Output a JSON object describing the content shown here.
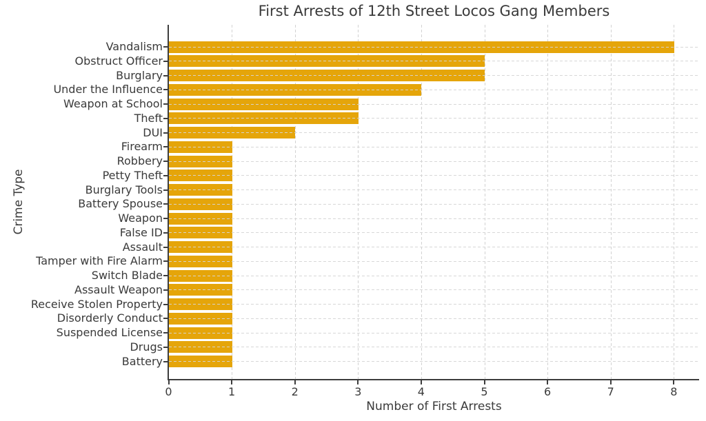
{
  "chart_data": {
    "type": "bar",
    "orientation": "horizontal",
    "title": "First Arrests of 12th Street Locos Gang Members",
    "xlabel": "Number of First Arrests",
    "ylabel": "Crime Type",
    "categories": [
      "Vandalism",
      "Obstruct Officer",
      "Burglary",
      "Under the Influence",
      "Weapon at School",
      "Theft",
      "DUI",
      "Firearm",
      "Robbery",
      "Petty Theft",
      "Burglary Tools",
      "Battery Spouse",
      "Weapon",
      "False ID",
      "Assault",
      "Tamper with Fire Alarm",
      "Switch Blade",
      "Assault Weapon",
      "Receive Stolen Property",
      "Disorderly Conduct",
      "Suspended License",
      "Drugs",
      "Battery"
    ],
    "values": [
      8,
      5,
      5,
      4,
      3,
      3,
      2,
      1,
      1,
      1,
      1,
      1,
      1,
      1,
      1,
      1,
      1,
      1,
      1,
      1,
      1,
      1,
      1
    ],
    "xticks": [
      0,
      1,
      2,
      3,
      4,
      5,
      6,
      7,
      8
    ],
    "xlim": [
      0,
      8.4
    ],
    "grid": true,
    "grid_style": "dashed",
    "legend": "none",
    "bar_color": "#E5A50A",
    "grid_color": "#d2d2d2",
    "spine_color": "#3c3c3c",
    "text_color": "#3a3a3a",
    "background_color": "#ffffff"
  }
}
